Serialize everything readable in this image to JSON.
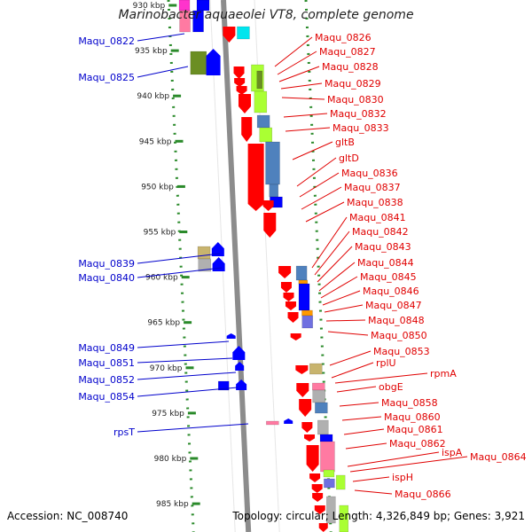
{
  "title": "Marinobacter aquaeolei VT8, complete genome",
  "accession": "Accession: NC_008740",
  "topology": "Topology: circular; Length: 4,326,849 bp; Genes: 3,921",
  "ticks": [
    "930 kbp",
    "935 kbp",
    "940 kbp",
    "945 kbp",
    "950 kbp",
    "955 kbp",
    "960 kbp",
    "965 kbp",
    "970 kbp",
    "975 kbp",
    "980 kbp",
    "985 kbp"
  ],
  "left_labels": [
    "Maqu_0822",
    "Maqu_0825",
    "Maqu_0839",
    "Maqu_0840",
    "Maqu_0849",
    "Maqu_0851",
    "Maqu_0852",
    "Maqu_0854",
    "rpsT"
  ],
  "right_labels": [
    "Maqu_0826",
    "Maqu_0827",
    "Maqu_0828",
    "Maqu_0829",
    "Maqu_0830",
    "Maqu_0832",
    "Maqu_0833",
    "gltB",
    "gltD",
    "Maqu_0836",
    "Maqu_0837",
    "Maqu_0838",
    "Maqu_0841",
    "Maqu_0842",
    "Maqu_0843",
    "Maqu_0844",
    "Maqu_0845",
    "Maqu_0846",
    "Maqu_0847",
    "Maqu_0848",
    "Maqu_0850",
    "Maqu_0853",
    "rplU",
    "rpmA",
    "obgE",
    "Maqu_0858",
    "Maqu_0860",
    "Maqu_0861",
    "Maqu_0862",
    "ispA",
    "Maqu_0864",
    "ispH",
    "Maqu_0866"
  ],
  "colors": {
    "backbone": "#8c8c8c",
    "tick_line": "#2a8a2a",
    "left_label": "#0000cc",
    "right_label": "#e00000",
    "gene_red": "#ff0000",
    "gene_blue": "#0000ff",
    "gene_steel": "#4f81bd",
    "gene_lime": "#aaff33",
    "gene_olive": "#6b8e23",
    "gene_cyan": "#00e5ee",
    "gene_pink": "#ff7aa2",
    "gene_magenta": "#ff33cc",
    "gene_tan": "#c8b46e",
    "gene_grey": "#b0b0b0",
    "gene_orange": "#ff9900",
    "gene_purple": "#7070e0"
  }
}
